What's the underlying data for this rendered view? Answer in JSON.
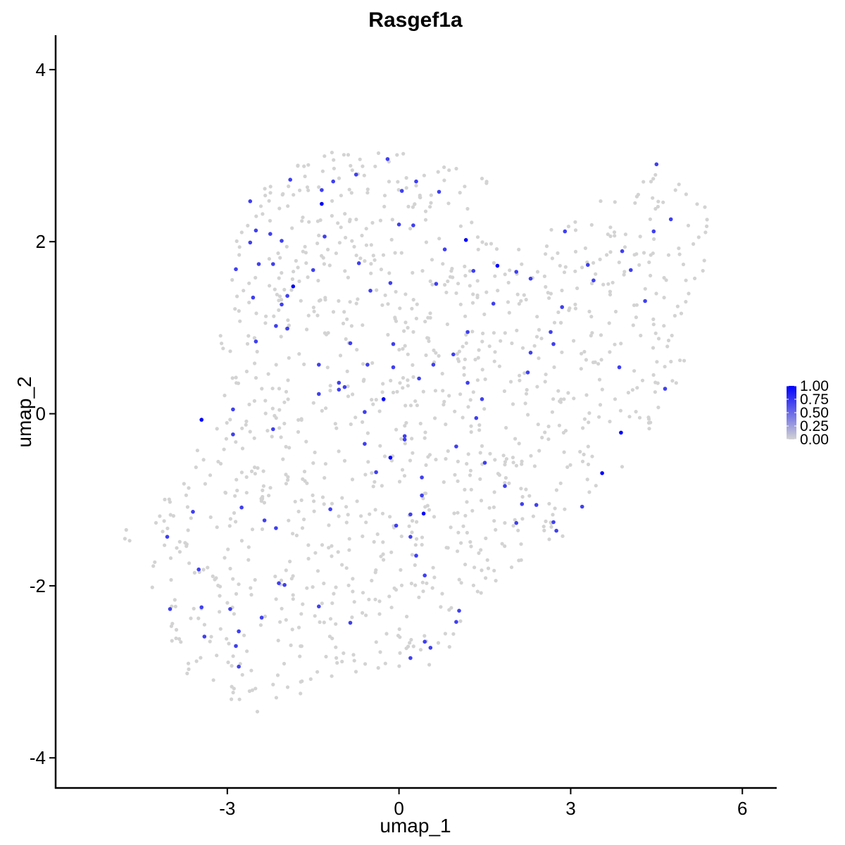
{
  "chart_data": {
    "type": "scatter",
    "title": "Rasgef1a",
    "xlabel": "umap_1",
    "ylabel": "umap_2",
    "xlim": [
      -6.0,
      6.6
    ],
    "ylim": [
      -4.35,
      4.4
    ],
    "x_ticks": [
      -3,
      0,
      3,
      6
    ],
    "x_tick_labels": [
      "-3",
      "0",
      "3",
      "6"
    ],
    "y_ticks": [
      -4,
      -2,
      0,
      2,
      4
    ],
    "y_tick_labels": [
      "-4",
      "-2",
      "0",
      "2",
      "4"
    ],
    "grid": false,
    "legend_placement": "right",
    "color_scale": {
      "low": "#d3d3d3",
      "high": "#0000ff",
      "min": 0,
      "max": 1,
      "breaks": [
        0,
        0.25,
        0.5,
        0.75,
        1.0
      ],
      "break_labels": [
        "0.00",
        "0.25",
        "0.50",
        "0.75",
        "1.00"
      ]
    },
    "background_cells": {
      "expression": 0,
      "count": 1150,
      "seed": 12345,
      "region": [
        [
          -4.7,
          -1.3
        ],
        [
          -4.1,
          -1.0
        ],
        [
          -3.2,
          -0.1
        ],
        [
          -3.1,
          1.2
        ],
        [
          -2.9,
          1.9
        ],
        [
          -2.5,
          2.6
        ],
        [
          -1.9,
          2.9
        ],
        [
          -1.0,
          3.1
        ],
        [
          0.0,
          3.1
        ],
        [
          0.7,
          2.9
        ],
        [
          1.6,
          2.8
        ],
        [
          1.2,
          2.1
        ],
        [
          2.0,
          1.9
        ],
        [
          2.8,
          2.2
        ],
        [
          3.5,
          2.5
        ],
        [
          4.1,
          2.6
        ],
        [
          4.5,
          3.0
        ],
        [
          5.0,
          2.7
        ],
        [
          5.4,
          2.5
        ],
        [
          5.4,
          1.9
        ],
        [
          5.2,
          1.0
        ],
        [
          5.0,
          0.4
        ],
        [
          4.6,
          0.0
        ],
        [
          4.2,
          -0.4
        ],
        [
          3.8,
          -0.7
        ],
        [
          3.3,
          -1.1
        ],
        [
          2.8,
          -1.5
        ],
        [
          2.0,
          -1.8
        ],
        [
          1.2,
          -2.2
        ],
        [
          0.8,
          -2.9
        ],
        [
          0.0,
          -3.0
        ],
        [
          -1.0,
          -3.0
        ],
        [
          -2.0,
          -3.35
        ],
        [
          -2.6,
          -3.55
        ],
        [
          -3.2,
          -3.2
        ],
        [
          -3.8,
          -3.0
        ],
        [
          -4.2,
          -2.3
        ],
        [
          -4.5,
          -1.8
        ],
        [
          -4.9,
          -1.4
        ]
      ]
    },
    "points": [
      {
        "x": -3.45,
        "y": -0.07,
        "expr": 1.0
      },
      {
        "x": -1.35,
        "y": 2.44,
        "expr": 1.0
      },
      {
        "x": -1.85,
        "y": 1.48,
        "expr": 1.0
      },
      {
        "x": 1.17,
        "y": 2.02,
        "expr": 1.0
      },
      {
        "x": 1.72,
        "y": 1.72,
        "expr": 1.0
      },
      {
        "x": -0.27,
        "y": 0.17,
        "expr": 1.0
      },
      {
        "x": -0.15,
        "y": -0.51,
        "expr": 1.0
      },
      {
        "x": 0.43,
        "y": -1.16,
        "expr": 1.0
      },
      {
        "x": 3.88,
        "y": -0.22,
        "expr": 1.0
      },
      {
        "x": 3.55,
        "y": -0.69,
        "expr": 1.0
      },
      {
        "x": -2.05,
        "y": 2.01,
        "expr": 0.7
      },
      {
        "x": -2.25,
        "y": 2.09,
        "expr": 0.7
      },
      {
        "x": -2.6,
        "y": 1.99,
        "expr": 0.7
      },
      {
        "x": -2.85,
        "y": 1.68,
        "expr": 0.7
      },
      {
        "x": -2.45,
        "y": 1.74,
        "expr": 0.7
      },
      {
        "x": -2.2,
        "y": 1.74,
        "expr": 0.7
      },
      {
        "x": -2.5,
        "y": 2.13,
        "expr": 0.7
      },
      {
        "x": -1.9,
        "y": 2.72,
        "expr": 0.7
      },
      {
        "x": -1.35,
        "y": 2.6,
        "expr": 0.7
      },
      {
        "x": -1.15,
        "y": 2.7,
        "expr": 0.7
      },
      {
        "x": -0.75,
        "y": 2.78,
        "expr": 0.7
      },
      {
        "x": -0.2,
        "y": 2.96,
        "expr": 0.7
      },
      {
        "x": 0.3,
        "y": 2.7,
        "expr": 0.7
      },
      {
        "x": 0.7,
        "y": 2.58,
        "expr": 0.7
      },
      {
        "x": 0.05,
        "y": 2.59,
        "expr": 0.7
      },
      {
        "x": -2.6,
        "y": 2.47,
        "expr": 0.7
      },
      {
        "x": -1.3,
        "y": 2.06,
        "expr": 0.7
      },
      {
        "x": 0.0,
        "y": 2.2,
        "expr": 0.7
      },
      {
        "x": 0.25,
        "y": 2.19,
        "expr": 0.7
      },
      {
        "x": 0.8,
        "y": 1.91,
        "expr": 0.7
      },
      {
        "x": -0.7,
        "y": 1.75,
        "expr": 0.7
      },
      {
        "x": -1.5,
        "y": 1.67,
        "expr": 0.7
      },
      {
        "x": -1.95,
        "y": 1.37,
        "expr": 0.7
      },
      {
        "x": -2.05,
        "y": 1.27,
        "expr": 0.7
      },
      {
        "x": -2.55,
        "y": 1.35,
        "expr": 0.7
      },
      {
        "x": -0.5,
        "y": 1.43,
        "expr": 0.7
      },
      {
        "x": -0.15,
        "y": 1.52,
        "expr": 0.7
      },
      {
        "x": 0.65,
        "y": 1.51,
        "expr": 0.7
      },
      {
        "x": 1.3,
        "y": 1.66,
        "expr": 0.7
      },
      {
        "x": 1.65,
        "y": 1.28,
        "expr": 0.7
      },
      {
        "x": 2.05,
        "y": 1.65,
        "expr": 0.7
      },
      {
        "x": 2.3,
        "y": 1.57,
        "expr": 0.7
      },
      {
        "x": 2.9,
        "y": 2.12,
        "expr": 0.7
      },
      {
        "x": 3.3,
        "y": 1.73,
        "expr": 0.7
      },
      {
        "x": 3.4,
        "y": 1.55,
        "expr": 0.7
      },
      {
        "x": 3.9,
        "y": 1.89,
        "expr": 0.7
      },
      {
        "x": 4.05,
        "y": 1.67,
        "expr": 0.7
      },
      {
        "x": 4.45,
        "y": 2.12,
        "expr": 0.7
      },
      {
        "x": 4.75,
        "y": 2.26,
        "expr": 0.7
      },
      {
        "x": 4.5,
        "y": 2.9,
        "expr": 0.7
      },
      {
        "x": 4.3,
        "y": 1.31,
        "expr": 0.7
      },
      {
        "x": 3.85,
        "y": 0.54,
        "expr": 0.7
      },
      {
        "x": 4.65,
        "y": 0.29,
        "expr": 0.7
      },
      {
        "x": 2.85,
        "y": 1.24,
        "expr": 0.7
      },
      {
        "x": 2.65,
        "y": 0.95,
        "expr": 0.7
      },
      {
        "x": 2.7,
        "y": 0.81,
        "expr": 0.7
      },
      {
        "x": 2.3,
        "y": 0.71,
        "expr": 0.7
      },
      {
        "x": 2.25,
        "y": 0.48,
        "expr": 0.7
      },
      {
        "x": 1.2,
        "y": 0.95,
        "expr": 0.7
      },
      {
        "x": 0.95,
        "y": 0.69,
        "expr": 0.7
      },
      {
        "x": -2.15,
        "y": 1.02,
        "expr": 0.7
      },
      {
        "x": -1.95,
        "y": 0.99,
        "expr": 0.7
      },
      {
        "x": -2.5,
        "y": 0.84,
        "expr": 0.7
      },
      {
        "x": -1.4,
        "y": 0.57,
        "expr": 0.7
      },
      {
        "x": -0.85,
        "y": 0.82,
        "expr": 0.7
      },
      {
        "x": -0.55,
        "y": 0.57,
        "expr": 0.7
      },
      {
        "x": -0.1,
        "y": 0.54,
        "expr": 0.7
      },
      {
        "x": -0.1,
        "y": 0.81,
        "expr": 0.7
      },
      {
        "x": 0.35,
        "y": 0.41,
        "expr": 0.7
      },
      {
        "x": 0.6,
        "y": 0.57,
        "expr": 0.7
      },
      {
        "x": 1.2,
        "y": 0.36,
        "expr": 0.7
      },
      {
        "x": -1.05,
        "y": 0.36,
        "expr": 0.7
      },
      {
        "x": -1.05,
        "y": 0.28,
        "expr": 0.7
      },
      {
        "x": -0.95,
        "y": 0.31,
        "expr": 0.7
      },
      {
        "x": -1.4,
        "y": 0.23,
        "expr": 0.7
      },
      {
        "x": 1.45,
        "y": 0.17,
        "expr": 0.7
      },
      {
        "x": 1.35,
        "y": -0.05,
        "expr": 0.7
      },
      {
        "x": -2.9,
        "y": 0.05,
        "expr": 0.7
      },
      {
        "x": -2.9,
        "y": -0.24,
        "expr": 0.7
      },
      {
        "x": -2.2,
        "y": -0.18,
        "expr": 0.7
      },
      {
        "x": -0.6,
        "y": 0.02,
        "expr": 0.7
      },
      {
        "x": 0.1,
        "y": -0.26,
        "expr": 0.7
      },
      {
        "x": 0.1,
        "y": -0.3,
        "expr": 0.7
      },
      {
        "x": -0.6,
        "y": -0.35,
        "expr": 0.7
      },
      {
        "x": 1.0,
        "y": -0.38,
        "expr": 0.7
      },
      {
        "x": -0.4,
        "y": -0.68,
        "expr": 0.7
      },
      {
        "x": 1.5,
        "y": -0.57,
        "expr": 0.7
      },
      {
        "x": 0.4,
        "y": -0.74,
        "expr": 0.7
      },
      {
        "x": 0.4,
        "y": -0.95,
        "expr": 0.7
      },
      {
        "x": 1.85,
        "y": -0.84,
        "expr": 0.7
      },
      {
        "x": 2.15,
        "y": -1.05,
        "expr": 0.7
      },
      {
        "x": 2.4,
        "y": -1.06,
        "expr": 0.7
      },
      {
        "x": 2.7,
        "y": -1.26,
        "expr": 0.7
      },
      {
        "x": 2.75,
        "y": -1.36,
        "expr": 0.7
      },
      {
        "x": 3.2,
        "y": -1.08,
        "expr": 0.7
      },
      {
        "x": 2.05,
        "y": -1.27,
        "expr": 0.7
      },
      {
        "x": -3.6,
        "y": -1.14,
        "expr": 0.7
      },
      {
        "x": -2.75,
        "y": -1.09,
        "expr": 0.7
      },
      {
        "x": -1.2,
        "y": -1.11,
        "expr": 0.7
      },
      {
        "x": -2.35,
        "y": -1.24,
        "expr": 0.7
      },
      {
        "x": -2.15,
        "y": -1.33,
        "expr": 0.7
      },
      {
        "x": -0.05,
        "y": -1.3,
        "expr": 0.7
      },
      {
        "x": 0.2,
        "y": -1.17,
        "expr": 0.7
      },
      {
        "x": 0.2,
        "y": -1.43,
        "expr": 0.7
      },
      {
        "x": -4.05,
        "y": -1.43,
        "expr": 0.7
      },
      {
        "x": 0.3,
        "y": -1.65,
        "expr": 0.7
      },
      {
        "x": -3.5,
        "y": -1.81,
        "expr": 0.7
      },
      {
        "x": 0.45,
        "y": -1.88,
        "expr": 0.7
      },
      {
        "x": -2.1,
        "y": -1.97,
        "expr": 0.7
      },
      {
        "x": -2.0,
        "y": -1.99,
        "expr": 0.7
      },
      {
        "x": -4.0,
        "y": -2.27,
        "expr": 0.7
      },
      {
        "x": -3.45,
        "y": -2.25,
        "expr": 0.7
      },
      {
        "x": -2.95,
        "y": -2.27,
        "expr": 0.7
      },
      {
        "x": -1.4,
        "y": -2.24,
        "expr": 0.7
      },
      {
        "x": 1.05,
        "y": -2.29,
        "expr": 0.7
      },
      {
        "x": 1.0,
        "y": -2.42,
        "expr": 0.7
      },
      {
        "x": -2.4,
        "y": -2.37,
        "expr": 0.7
      },
      {
        "x": -0.85,
        "y": -2.43,
        "expr": 0.7
      },
      {
        "x": -2.8,
        "y": -2.53,
        "expr": 0.7
      },
      {
        "x": -3.4,
        "y": -2.59,
        "expr": 0.7
      },
      {
        "x": -2.85,
        "y": -2.7,
        "expr": 0.7
      },
      {
        "x": 0.45,
        "y": -2.65,
        "expr": 0.7
      },
      {
        "x": 0.55,
        "y": -2.72,
        "expr": 0.7
      },
      {
        "x": 0.2,
        "y": -2.84,
        "expr": 0.7
      },
      {
        "x": -2.8,
        "y": -2.94,
        "expr": 0.7
      }
    ]
  }
}
